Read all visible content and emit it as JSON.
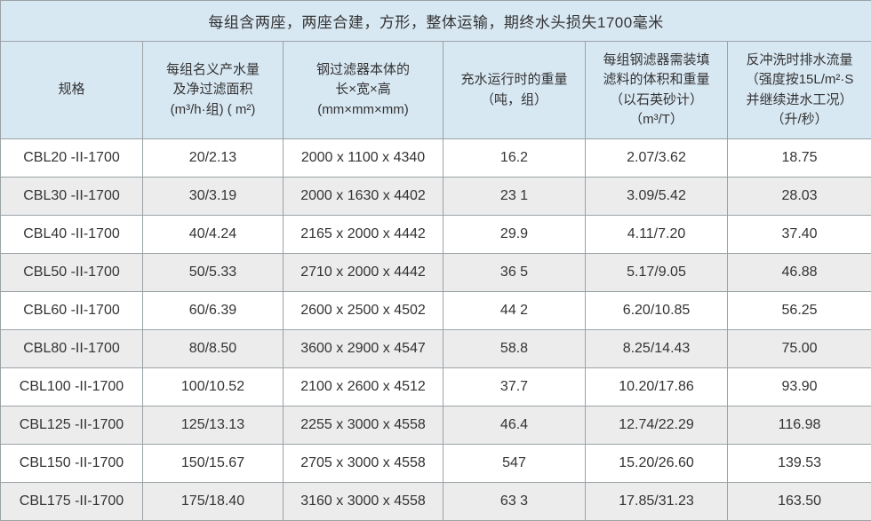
{
  "table": {
    "title": "每组含两座，两座合建，方形，整体运输，期终水头损失1700毫米",
    "columns": [
      {
        "label": "规格"
      },
      {
        "label": "每组名义产水量\n及净过滤面积\n(m³/h·组) ( m²)"
      },
      {
        "label": "钢过滤器本体的\n长×宽×高\n(mm×mm×mm)"
      },
      {
        "label": "充水运行时的重量\n（吨，组）"
      },
      {
        "label": "每组钢滤器需装填\n滤料的体积和重量\n（以石英砂计）\n（m³/T）"
      },
      {
        "label": "反冲洗时排水流量\n（强度按15L/m²·S\n并继续进水工况）\n（升/秒）"
      }
    ],
    "rows": [
      [
        "CBL20 -II-1700",
        "20/2.13",
        "2000 x 1100 x 4340",
        "16.2",
        "2.07/3.62",
        "18.75"
      ],
      [
        "CBL30 -II-1700",
        "30/3.19",
        "2000 x 1630 x 4402",
        "23 1",
        "3.09/5.42",
        "28.03"
      ],
      [
        "CBL40 -II-1700",
        "40/4.24",
        "2165 x 2000 x 4442",
        "29.9",
        "4.11/7.20",
        "37.40"
      ],
      [
        "CBL50 -II-1700",
        "50/5.33",
        "2710 x 2000 x 4442",
        "36 5",
        "5.17/9.05",
        "46.88"
      ],
      [
        "CBL60 -II-1700",
        "60/6.39",
        "2600 x 2500 x 4502",
        "44 2",
        "6.20/10.85",
        "56.25"
      ],
      [
        "CBL80 -II-1700",
        "80/8.50",
        "3600 x 2900 x 4547",
        "58.8",
        "8.25/14.43",
        "75.00"
      ],
      [
        "CBL100 -II-1700",
        "100/10.52",
        "2100 x 2600 x 4512",
        "37.7",
        "10.20/17.86",
        "93.90"
      ],
      [
        "CBL125 -II-1700",
        "125/13.13",
        "2255 x 3000 x 4558",
        "46.4",
        "12.74/22.29",
        "116.98"
      ],
      [
        "CBL150 -II-1700",
        "150/15.67",
        "2705 x 3000 x 4558",
        "547",
        "15.20/26.60",
        "139.53"
      ],
      [
        "CBL175 -II-1700",
        "175/18.40",
        "3160 x 3000 x 4558",
        "63 3",
        "17.85/31.23",
        "163.50"
      ]
    ]
  },
  "colors": {
    "header_background": "#d8e8f3",
    "alt_row_background": "#ececec",
    "border": "#9aa2a6",
    "text": "#333333"
  }
}
